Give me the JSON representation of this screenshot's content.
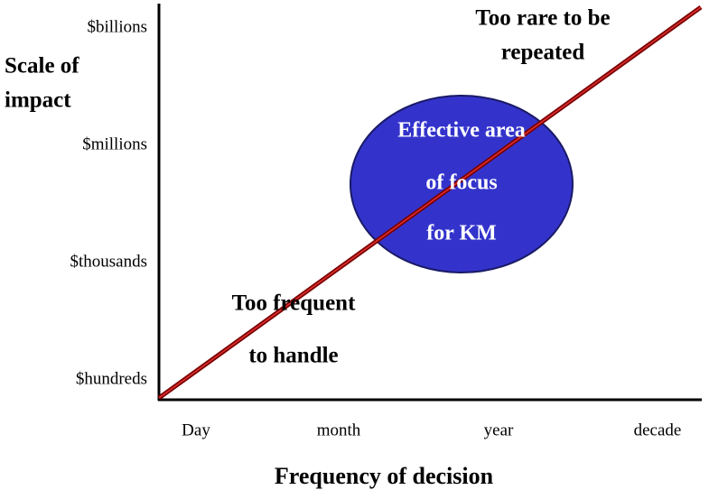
{
  "y_axis": {
    "title": [
      "Scale of",
      "impact"
    ],
    "labels": [
      "$billions",
      "$millions",
      "$thousands",
      "$hundreds"
    ]
  },
  "x_axis": {
    "title": "Frequency of decision",
    "labels": [
      "Day",
      "month",
      "year",
      "decade"
    ]
  },
  "annotations": {
    "top": [
      "Too rare to be",
      "repeated"
    ],
    "bottom": [
      "Too frequent",
      "to handle"
    ]
  },
  "focus_area": {
    "label": [
      "Effective area",
      "of focus",
      "for KM"
    ]
  }
}
